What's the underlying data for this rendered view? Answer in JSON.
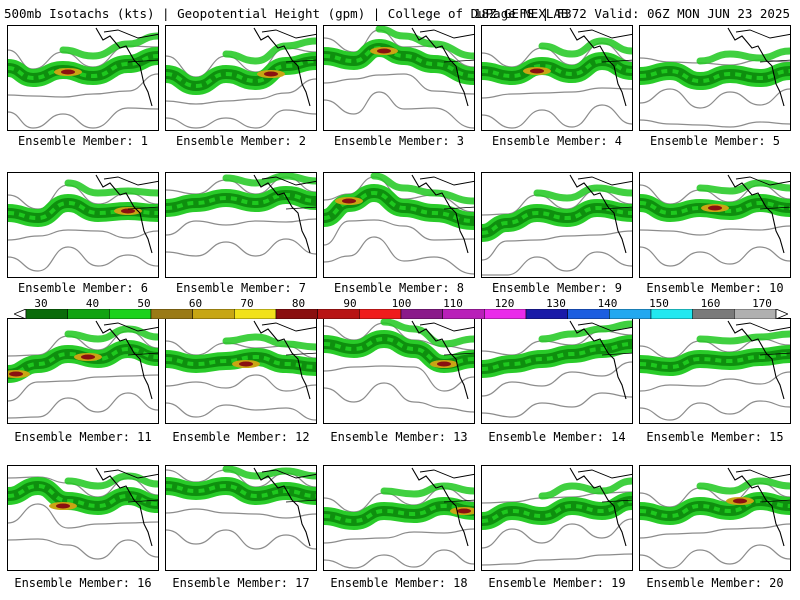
{
  "header": {
    "left": "500mb Isotachs (kts) | Geopotential Height (gpm) | College of DuPage NEXLAB",
    "right": "18Z GEFS | F372 Valid: 06Z MON JUN 23 2025"
  },
  "colorbar": {
    "labels": [
      "30",
      "40",
      "50",
      "60",
      "70",
      "80",
      "90",
      "100",
      "110",
      "120",
      "130",
      "140",
      "150",
      "160",
      "170"
    ],
    "colors": [
      "#0a6b0a",
      "#12a312",
      "#1cd21c",
      "#9a7a16",
      "#c7a614",
      "#f2e21a",
      "#8a0f0f",
      "#b81414",
      "#ef1c1c",
      "#8a1a8a",
      "#b91fb9",
      "#ea2aea",
      "#1a1aa8",
      "#1c5ee0",
      "#22a8f0",
      "#22e8f0",
      "#7a7a7a",
      "#b0b0b0"
    ]
  },
  "map_colors": {
    "jet_light": "#1ec81e",
    "jet_mid": "#0e8f0e",
    "jet_core": "#c9a514",
    "jet_max": "#8a1010",
    "contour": "#8c8c8c",
    "coast": "#000000"
  },
  "panels": [
    {
      "label": "Ensemble Member: 1",
      "jet": [
        [
          0,
          42
        ],
        [
          25,
          52
        ],
        [
          55,
          44
        ],
        [
          85,
          50
        ],
        [
          120,
          38
        ],
        [
          150,
          30
        ]
      ],
      "maxima": [
        [
          60,
          46
        ]
      ]
    },
    {
      "label": "Ensemble Member: 2",
      "jet": [
        [
          0,
          48
        ],
        [
          30,
          60
        ],
        [
          60,
          48
        ],
        [
          90,
          55
        ],
        [
          120,
          40
        ],
        [
          150,
          35
        ]
      ],
      "maxima": [
        [
          105,
          48
        ]
      ]
    },
    {
      "label": "Ensemble Member: 3",
      "jet": [
        [
          0,
          30
        ],
        [
          30,
          35
        ],
        [
          55,
          22
        ],
        [
          80,
          30
        ],
        [
          110,
          38
        ],
        [
          150,
          50
        ]
      ],
      "maxima": [
        [
          60,
          25
        ]
      ]
    },
    {
      "label": "Ensemble Member: 4",
      "jet": [
        [
          0,
          45
        ],
        [
          30,
          50
        ],
        [
          60,
          40
        ],
        [
          90,
          48
        ],
        [
          120,
          35
        ],
        [
          150,
          45
        ]
      ],
      "maxima": [
        [
          55,
          45
        ]
      ]
    },
    {
      "label": "Ensemble Member: 5",
      "jet": [
        [
          0,
          50
        ],
        [
          30,
          45
        ],
        [
          60,
          55
        ],
        [
          90,
          48
        ],
        [
          120,
          52
        ],
        [
          150,
          45
        ]
      ],
      "maxima": []
    },
    {
      "label": "Ensemble Member: 6",
      "jet": [
        [
          0,
          40
        ],
        [
          30,
          45
        ],
        [
          60,
          30
        ],
        [
          90,
          40
        ],
        [
          120,
          38
        ],
        [
          150,
          40
        ]
      ],
      "maxima": [
        [
          120,
          38
        ]
      ]
    },
    {
      "label": "Ensemble Member: 7",
      "jet": [
        [
          0,
          35
        ],
        [
          30,
          30
        ],
        [
          60,
          25
        ],
        [
          90,
          30
        ],
        [
          120,
          22
        ],
        [
          150,
          28
        ]
      ],
      "maxima": []
    },
    {
      "label": "Ensemble Member: 8",
      "jet": [
        [
          0,
          45
        ],
        [
          25,
          30
        ],
        [
          50,
          20
        ],
        [
          80,
          35
        ],
        [
          110,
          40
        ],
        [
          150,
          48
        ]
      ],
      "maxima": [
        [
          25,
          28
        ]
      ]
    },
    {
      "label": "Ensemble Member: 9",
      "jet": [
        [
          0,
          60
        ],
        [
          25,
          50
        ],
        [
          55,
          40
        ],
        [
          85,
          45
        ],
        [
          115,
          35
        ],
        [
          150,
          40
        ]
      ],
      "maxima": []
    },
    {
      "label": "Ensemble Member: 10",
      "jet": [
        [
          0,
          30
        ],
        [
          30,
          40
        ],
        [
          60,
          35
        ],
        [
          90,
          38
        ],
        [
          120,
          30
        ],
        [
          150,
          35
        ]
      ],
      "maxima": [
        [
          75,
          35
        ]
      ]
    },
    {
      "label": "Ensemble Member: 11",
      "jet": [
        [
          0,
          55
        ],
        [
          30,
          45
        ],
        [
          60,
          35
        ],
        [
          90,
          40
        ],
        [
          120,
          30
        ],
        [
          150,
          38
        ]
      ],
      "maxima": [
        [
          80,
          38
        ],
        [
          8,
          55
        ]
      ]
    },
    {
      "label": "Ensemble Member: 12",
      "jet": [
        [
          0,
          40
        ],
        [
          30,
          45
        ],
        [
          60,
          42
        ],
        [
          90,
          38
        ],
        [
          120,
          45
        ],
        [
          150,
          48
        ]
      ],
      "maxima": [
        [
          80,
          45
        ]
      ]
    },
    {
      "label": "Ensemble Member: 13",
      "jet": [
        [
          0,
          25
        ],
        [
          30,
          30
        ],
        [
          60,
          20
        ],
        [
          90,
          30
        ],
        [
          120,
          45
        ],
        [
          150,
          40
        ]
      ],
      "maxima": [
        [
          120,
          45
        ]
      ]
    },
    {
      "label": "Ensemble Member: 14",
      "jet": [
        [
          0,
          50
        ],
        [
          30,
          45
        ],
        [
          60,
          40
        ],
        [
          90,
          35
        ],
        [
          120,
          30
        ],
        [
          150,
          25
        ]
      ],
      "maxima": []
    },
    {
      "label": "Ensemble Member: 15",
      "jet": [
        [
          0,
          45
        ],
        [
          30,
          48
        ],
        [
          60,
          40
        ],
        [
          90,
          42
        ],
        [
          120,
          38
        ],
        [
          150,
          35
        ]
      ],
      "maxima": []
    },
    {
      "label": "Ensemble Member: 16",
      "jet": [
        [
          0,
          30
        ],
        [
          30,
          20
        ],
        [
          60,
          35
        ],
        [
          90,
          40
        ],
        [
          120,
          30
        ],
        [
          150,
          38
        ]
      ],
      "maxima": [
        [
          55,
          40
        ]
      ]
    },
    {
      "label": "Ensemble Member: 17",
      "jet": [
        [
          0,
          20
        ],
        [
          30,
          25
        ],
        [
          60,
          20
        ],
        [
          90,
          30
        ],
        [
          120,
          25
        ],
        [
          150,
          30
        ]
      ],
      "maxima": []
    },
    {
      "label": "Ensemble Member: 18",
      "jet": [
        [
          0,
          50
        ],
        [
          30,
          55
        ],
        [
          60,
          45
        ],
        [
          90,
          48
        ],
        [
          120,
          40
        ],
        [
          150,
          45
        ]
      ],
      "maxima": [
        [
          140,
          45
        ]
      ]
    },
    {
      "label": "Ensemble Member: 19",
      "jet": [
        [
          0,
          55
        ],
        [
          30,
          45
        ],
        [
          60,
          50
        ],
        [
          90,
          40
        ],
        [
          120,
          45
        ],
        [
          150,
          35
        ]
      ],
      "maxima": []
    },
    {
      "label": "Ensemble Member: 20",
      "jet": [
        [
          0,
          45
        ],
        [
          30,
          50
        ],
        [
          60,
          40
        ],
        [
          90,
          45
        ],
        [
          120,
          35
        ],
        [
          150,
          40
        ]
      ],
      "maxima": [
        [
          100,
          35
        ]
      ]
    }
  ]
}
